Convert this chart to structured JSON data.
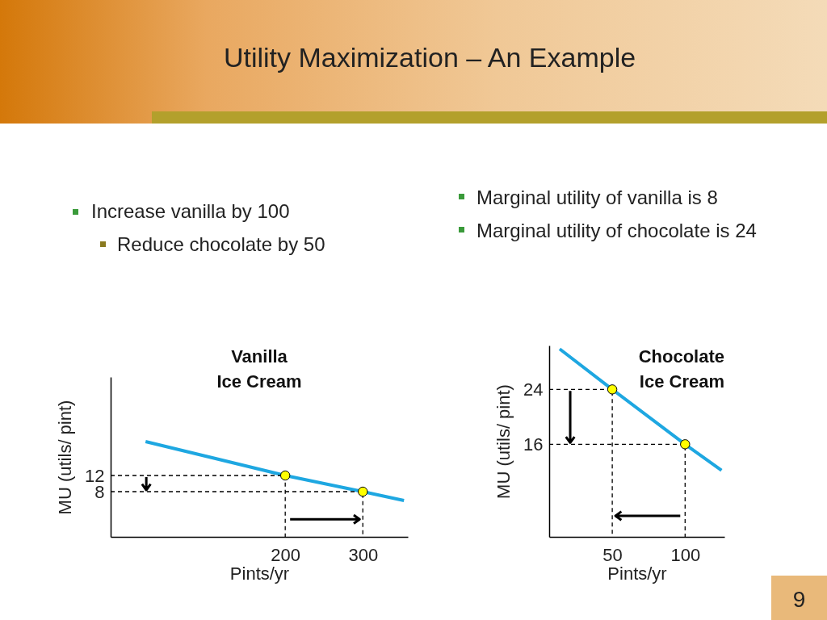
{
  "chart_data": [
    {
      "type": "line",
      "title": "Vanilla\nIce Cream",
      "xlabel": "Pints/yr",
      "ylabel": "MU  (utils/ pint)",
      "xlim": [
        -25,
        358
      ],
      "ylim": [
        -3.2,
        36.4
      ],
      "xticks": [
        200,
        300
      ],
      "yticks": [
        8,
        12
      ],
      "grid": false,
      "series": [
        {
          "type": "line",
          "color": "#1ea7e1",
          "x": [
            20,
            200,
            300,
            353
          ],
          "values": [
            20.4,
            12,
            8,
            5.8
          ]
        },
        {
          "type": "line",
          "line_style": "dashed",
          "color": "#000000",
          "x": [
            -25,
            200,
            200
          ],
          "values": [
            12,
            12,
            -3.2
          ]
        },
        {
          "type": "line",
          "line_style": "dashed",
          "color": "#000000",
          "x": [
            -25,
            300,
            300
          ],
          "values": [
            8,
            8,
            -3.2
          ]
        },
        {
          "type": "scatter",
          "marker": "circle",
          "color": "#ffff00",
          "x": [
            200,
            300
          ],
          "values": [
            12,
            8
          ]
        }
      ],
      "annotations": [
        "Utility Maximization – An Example",
        "Increase vanilla by 100",
        "Reduce chocolate by 50"
      ]
    },
    {
      "type": "line",
      "title": "Chocolate\nIce Cream",
      "xlabel": "Pints/yr",
      "ylabel": "MU  (utils/ pint)",
      "xlim": [
        6.7,
        127
      ],
      "ylim": [
        2.5,
        30.4
      ],
      "xticks": [
        50,
        100
      ],
      "yticks": [
        16,
        24
      ],
      "grid": false,
      "series": [
        {
          "type": "line",
          "color": "#1ea7e1",
          "x": [
            13.9,
            50,
            100,
            125
          ],
          "values": [
            29.9,
            24,
            16,
            12.2
          ]
        },
        {
          "type": "line",
          "line_style": "dashed",
          "color": "#000000",
          "x": [
            6.7,
            50,
            50
          ],
          "values": [
            24,
            24,
            2.5
          ]
        },
        {
          "type": "line",
          "line_style": "dashed",
          "color": "#000000",
          "x": [
            6.7,
            100,
            100
          ],
          "values": [
            16,
            16,
            2.5
          ]
        },
        {
          "type": "scatter",
          "marker": "circle",
          "color": "#ffff00",
          "x": [
            100,
            50
          ],
          "values": [
            16,
            24
          ]
        }
      ],
      "annotations": [
        "Marginal utility of vanilla is 8",
        "Marginal utility of chocolate is 24",
        "9"
      ]
    }
  ]
}
